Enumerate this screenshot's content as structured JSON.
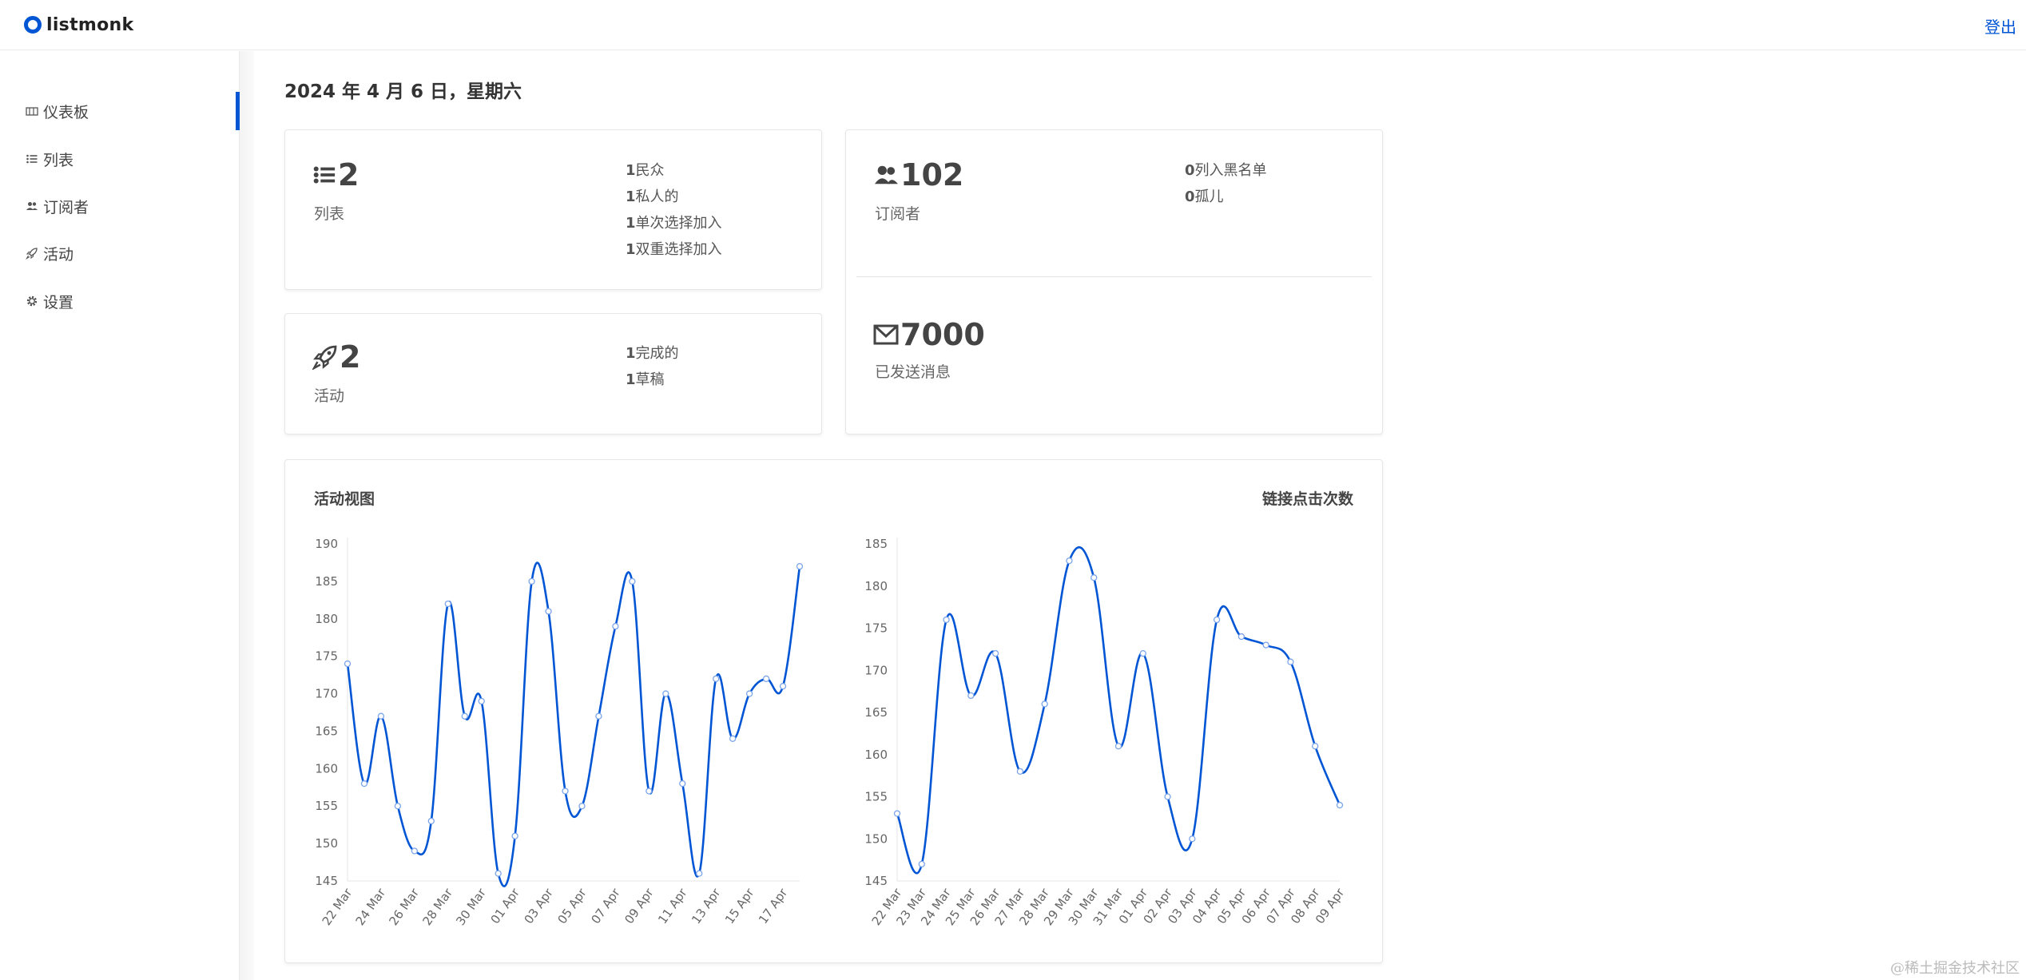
{
  "app": {
    "brand": "listmonk",
    "logout": "登出"
  },
  "sidebar": {
    "items": [
      {
        "label": "仪表板",
        "icon": "dashboard-icon",
        "active": true
      },
      {
        "label": "列表",
        "icon": "list-icon",
        "active": false
      },
      {
        "label": "订阅者",
        "icon": "users-icon",
        "active": false
      },
      {
        "label": "活动",
        "icon": "rocket-icon",
        "active": false
      },
      {
        "label": "设置",
        "icon": "gear-icon",
        "active": false
      }
    ]
  },
  "main": {
    "date": "2024 年 4 月 6 日，星期六",
    "lists": {
      "count": "2",
      "label": "列表",
      "details": [
        {
          "count": "1",
          "label": "民众"
        },
        {
          "count": "1",
          "label": "私人的"
        },
        {
          "count": "1",
          "label": "单次选择加入"
        },
        {
          "count": "1",
          "label": "双重选择加入"
        }
      ]
    },
    "subscribers": {
      "count": "102",
      "label": "订阅者",
      "details": [
        {
          "count": "0",
          "label": "列入黑名单"
        },
        {
          "count": "0",
          "label": "孤儿"
        }
      ]
    },
    "campaigns": {
      "count": "2",
      "label": "活动",
      "details": [
        {
          "count": "1",
          "label": "完成的"
        },
        {
          "count": "1",
          "label": "草稿"
        }
      ]
    },
    "messages": {
      "count": "7000",
      "label": "已发送消息"
    },
    "charts_titles": {
      "left": "活动视图",
      "right": "链接点击次数"
    }
  },
  "chart_data": [
    {
      "type": "line",
      "title": "活动视图",
      "x": [
        "22 Mar",
        "23 Mar",
        "24 Mar",
        "25 Mar",
        "26 Mar",
        "27 Mar",
        "28 Mar",
        "29 Mar",
        "30 Mar",
        "31 Mar",
        "01 Apr",
        "02 Apr",
        "03 Apr",
        "04 Apr",
        "05 Apr",
        "06 Apr",
        "07 Apr",
        "08 Apr",
        "09 Apr",
        "10 Apr",
        "11 Apr",
        "12 Apr",
        "13 Apr",
        "14 Apr",
        "15 Apr",
        "16 Apr",
        "17 Apr",
        "18 Apr"
      ],
      "tick_labels": [
        "22 Mar",
        "24 Mar",
        "26 Mar",
        "28 Mar",
        "30 Mar",
        "01 Apr",
        "03 Apr",
        "05 Apr",
        "07 Apr",
        "09 Apr",
        "11 Apr",
        "13 Apr",
        "15 Apr",
        "17 Apr"
      ],
      "values": [
        174,
        158,
        167,
        155,
        149,
        153,
        182,
        167,
        169,
        146,
        151,
        185,
        181,
        157,
        155,
        167,
        179,
        185,
        157,
        170,
        158,
        146,
        172,
        164,
        170,
        172,
        171,
        187
      ],
      "ylim": [
        145,
        190
      ],
      "yticks": [
        "190",
        "185",
        "180",
        "175",
        "170",
        "165",
        "160",
        "155",
        "150",
        "145"
      ],
      "color": "#0055d4"
    },
    {
      "type": "line",
      "title": "链接点击次数",
      "x": [
        "22 Mar",
        "23 Mar",
        "24 Mar",
        "25 Mar",
        "26 Mar",
        "27 Mar",
        "28 Mar",
        "29 Mar",
        "30 Mar",
        "31 Mar",
        "01 Apr",
        "02 Apr",
        "03 Apr",
        "04 Apr",
        "05 Apr",
        "06 Apr",
        "07 Apr",
        "08 Apr",
        "09 Apr"
      ],
      "tick_labels": [
        "22 Mar",
        "23 Mar",
        "24 Mar",
        "25 Mar",
        "26 Mar",
        "27 Mar",
        "28 Mar",
        "29 Mar",
        "30 Mar",
        "31 Mar",
        "01 Apr",
        "02 Apr",
        "03 Apr",
        "04 Apr",
        "05 Apr",
        "06 Apr",
        "07 Apr",
        "08 Apr",
        "09 Apr"
      ],
      "values": [
        153,
        147,
        176,
        167,
        172,
        158,
        166,
        183,
        181,
        161,
        172,
        155,
        150,
        176,
        174,
        173,
        171,
        161,
        154
      ],
      "ylim": [
        145,
        185
      ],
      "yticks": [
        "185",
        "180",
        "175",
        "170",
        "165",
        "160",
        "155",
        "150",
        "145"
      ],
      "color": "#0055d4"
    }
  ],
  "watermark": "@稀土掘金技术社区"
}
